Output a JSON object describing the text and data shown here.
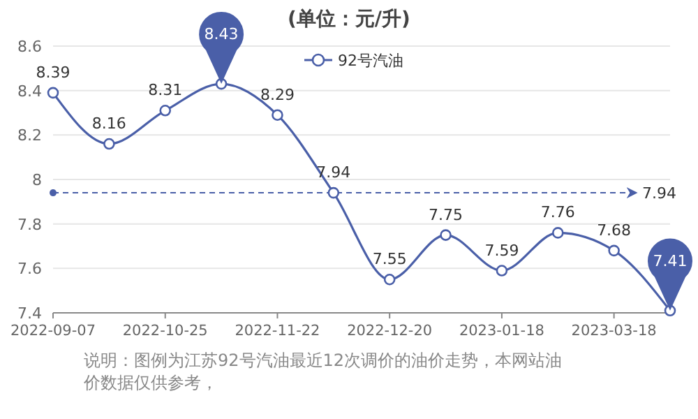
{
  "chart_data": {
    "type": "line",
    "title": "(单位：元/升)",
    "categories": [
      "2022-09-07",
      null,
      "2022-10-25",
      null,
      "2022-11-22",
      null,
      "2022-12-20",
      null,
      "2023-01-18",
      null,
      "2023-03-18",
      null
    ],
    "series": [
      {
        "name": "92号汽油",
        "color": "#4a5fa8",
        "values": [
          8.39,
          8.16,
          8.31,
          8.43,
          8.29,
          7.94,
          7.55,
          7.75,
          7.59,
          7.76,
          7.68,
          7.41
        ]
      }
    ],
    "ylim": [
      7.4,
      8.6
    ],
    "yticks": [
      7.4,
      7.6,
      7.8,
      8,
      8.2,
      8.4,
      8.6
    ],
    "grid": "y",
    "legend": "top",
    "marker": "circle",
    "data_labels": true,
    "ref_lines": [
      {
        "axis": "y",
        "value": 7.94,
        "label": "7.94",
        "line_style": "dashed"
      }
    ],
    "annotations": [
      "说明：图例为江苏92号汽油最近12次调价的油价走势，本网站油价数据仅供参考，"
    ]
  }
}
